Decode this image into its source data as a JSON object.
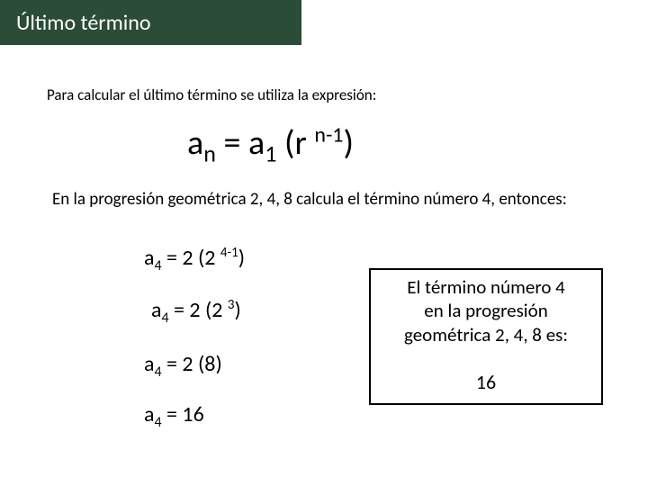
{
  "colors": {
    "title_bar_bg": "#2b4c36",
    "title_text": "#ffffff",
    "body_text": "#000000",
    "background": "#ffffff",
    "box_border": "#000000"
  },
  "typography": {
    "title_fontsize": 24,
    "body_fontsize": 17,
    "example_fontsize": 19,
    "formula_fontsize": 38,
    "step_fontsize": 24,
    "result_fontsize": 21
  },
  "title": "Último término",
  "intro": "Para calcular el último término se utiliza la expresión:",
  "formula": {
    "base_a1": "a",
    "sub_n": "n",
    "eq": " = a",
    "sub_1": "1",
    "paren_open": " (r ",
    "sup_exp": "n-1",
    "paren_close": ")"
  },
  "example_intro": "En la progresión geométrica 2, 4, 8 calcula el término número 4, entonces:",
  "steps": {
    "s1": {
      "a": "a",
      "sub": "4",
      "mid": " = 2 (2 ",
      "sup": "4-1",
      "end": ")"
    },
    "s2": {
      "a": "a",
      "sub": "4",
      "mid": " = 2 (2 ",
      "sup": "3",
      "end": ")"
    },
    "s3": {
      "a": "a",
      "sub": "4",
      "rest": " = 2 (8)"
    },
    "s4": {
      "a": "a",
      "sub": "4",
      "rest": " = 16"
    }
  },
  "result": {
    "line1": "El término número 4",
    "line2": "en la progresión",
    "line3": "geométrica 2, 4, 8 es:",
    "value": "16"
  }
}
